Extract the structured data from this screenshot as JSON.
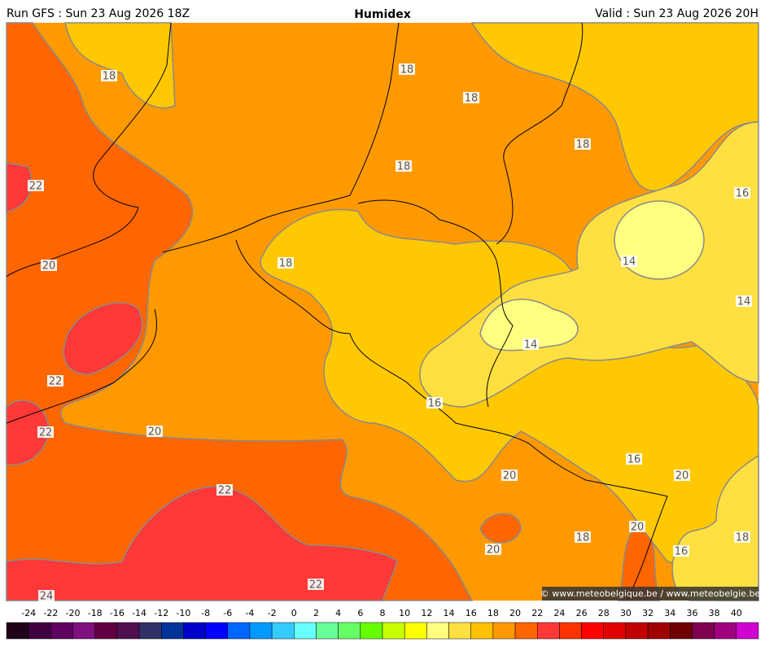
{
  "header": {
    "run": "Run GFS : Sun 23 Aug 2026 18Z",
    "title": "Humidex",
    "valid": "Valid : Sun 23 Aug 2026 20H"
  },
  "contour_labels": [
    18,
    18,
    18,
    18,
    18,
    22,
    16,
    20,
    18,
    14,
    14,
    14,
    22,
    16,
    22,
    20,
    16,
    20,
    20,
    22,
    20,
    18,
    18,
    20,
    16,
    22,
    24
  ],
  "colorbar": {
    "ticks": [
      -24,
      -22,
      -20,
      -18,
      -16,
      -14,
      -12,
      -10,
      -8,
      -6,
      -4,
      -2,
      0,
      2,
      4,
      6,
      8,
      10,
      12,
      14,
      16,
      18,
      20,
      22,
      24,
      26,
      28,
      30,
      32,
      34,
      36,
      38,
      40
    ],
    "colors": [
      "#200018",
      "#400040",
      "#600060",
      "#801080",
      "#600040",
      "#501050",
      "#303066",
      "#003399",
      "#0000cc",
      "#0000ff",
      "#0066ff",
      "#0099ff",
      "#33ccff",
      "#66ffff",
      "#66ff99",
      "#66ff66",
      "#66ff00",
      "#c8ff00",
      "#ffff00",
      "#ffff80",
      "#ffe040",
      "#ffc000",
      "#ff9900",
      "#ff6600",
      "#ff3838",
      "#ff3300",
      "#ff0000",
      "#e00000",
      "#c00000",
      "#a00000",
      "#700000",
      "#800050",
      "#a00080",
      "#d000d0"
    ]
  },
  "footer": {
    "credit": "© www.meteobelgique.be / www.meteobelgie.be"
  }
}
